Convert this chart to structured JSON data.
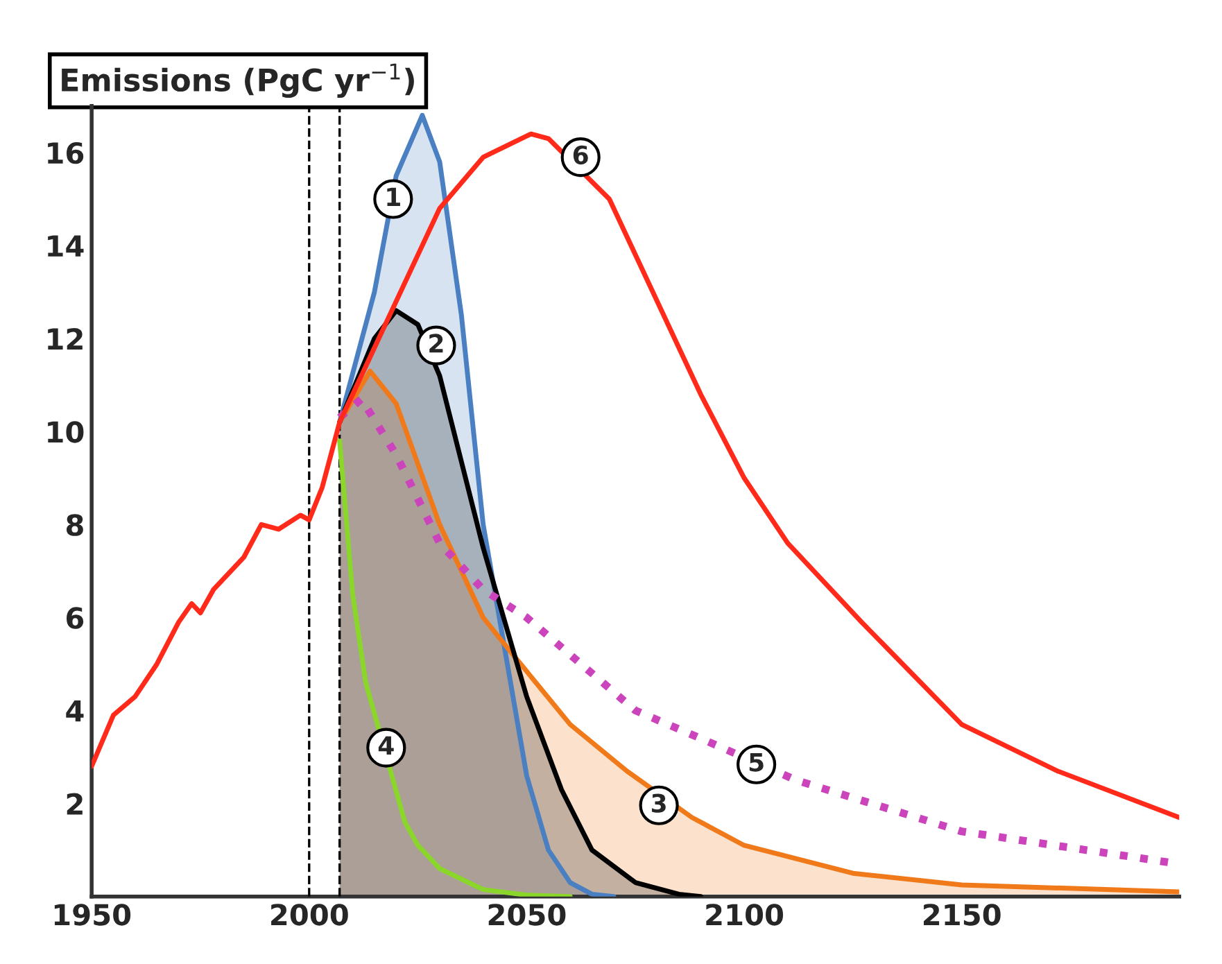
{
  "chart_data": {
    "type": "line",
    "ylabel": "Emissions (PgC yr$^{−1}$)",
    "xlim": [
      1950,
      2200
    ],
    "xticks": [
      1950,
      2000,
      2050,
      2100,
      2150
    ],
    "ylim": [
      0,
      17
    ],
    "yticks": [
      2,
      4,
      6,
      8,
      10,
      12,
      14,
      16
    ],
    "grid": false,
    "legend": false,
    "series": [
      {
        "type": "area",
        "color": "#4a7fc1",
        "x": [
          2007,
          2015,
          2020,
          2026,
          2030,
          2035,
          2040,
          2045,
          2050,
          2055,
          2060,
          2065,
          2070
        ],
        "values": [
          10.2,
          13.0,
          15.5,
          16.8,
          15.8,
          12.5,
          8.0,
          5.3,
          2.6,
          1.0,
          0.3,
          0.05,
          0
        ]
      },
      {
        "type": "area",
        "color": "#f07a1a",
        "x": [
          2007,
          2014,
          2020,
          2030,
          2040,
          2046,
          2060,
          2073,
          2088,
          2100,
          2125,
          2150,
          2200
        ],
        "values": [
          10.2,
          11.3,
          10.6,
          8.0,
          6.0,
          5.3,
          3.7,
          2.7,
          1.7,
          1.1,
          0.5,
          0.25,
          0.1
        ]
      },
      {
        "type": "area",
        "color": "#000000",
        "x": [
          2007,
          2015,
          2020,
          2025,
          2030,
          2040,
          2050,
          2058,
          2065,
          2075,
          2085,
          2090
        ],
        "values": [
          10.2,
          12.0,
          12.6,
          12.3,
          11.2,
          7.5,
          4.3,
          2.3,
          1.0,
          0.3,
          0.05,
          0
        ]
      },
      {
        "color": "#8ad62a",
        "x": [
          2007,
          2010,
          2013,
          2022,
          2025,
          2030,
          2040,
          2050,
          2060
        ],
        "values": [
          9.8,
          6.5,
          4.6,
          1.6,
          1.1,
          0.6,
          0.15,
          0.03,
          0
        ]
      },
      {
        "color": "#cc44bb",
        "line_style": "dotted",
        "x": [
          2007,
          2012,
          2020,
          2030,
          2040,
          2050,
          2075,
          2090,
          2112,
          2150,
          2200
        ],
        "values": [
          10.3,
          10.7,
          9.5,
          7.6,
          6.6,
          6.0,
          4.0,
          3.4,
          2.5,
          1.4,
          0.7
        ]
      },
      {
        "color": "#ff2a1a",
        "x": [
          1950,
          1955,
          1960,
          1965,
          1970,
          1973,
          1975,
          1978,
          1985,
          1989,
          1993,
          1998,
          2000,
          2003,
          2005,
          2007,
          2015,
          2020,
          2030,
          2040,
          2051,
          2055,
          2069,
          2080,
          2090,
          2100,
          2110,
          2127,
          2150,
          2172,
          2200
        ],
        "values": [
          2.8,
          3.9,
          4.3,
          5.0,
          5.9,
          6.3,
          6.1,
          6.6,
          7.3,
          8.0,
          7.9,
          8.2,
          8.1,
          8.8,
          9.5,
          10.2,
          11.8,
          12.8,
          14.8,
          15.9,
          16.4,
          16.3,
          15.0,
          12.8,
          10.8,
          9.0,
          7.6,
          5.9,
          3.7,
          2.7,
          1.7
        ]
      }
    ],
    "ref_lines": [
      {
        "axis": "x",
        "value": 2000,
        "color": "#000000",
        "line_style": "dashed"
      },
      {
        "axis": "x",
        "value": 2007,
        "color": "#000000",
        "line_style": "dashed"
      }
    ],
    "annotations": [
      {
        "text": "1",
        "x": 2019.3,
        "y": 15.0
      },
      {
        "text": "2",
        "x": 2029.2,
        "y": 11.85
      },
      {
        "text": "3",
        "x": 2080.4,
        "y": 1.96
      },
      {
        "text": "4",
        "x": 2017.7,
        "y": 3.2
      },
      {
        "text": "5",
        "x": 2102.8,
        "y": 2.84
      },
      {
        "text": "6",
        "x": 2062.4,
        "y": 15.9
      }
    ]
  }
}
